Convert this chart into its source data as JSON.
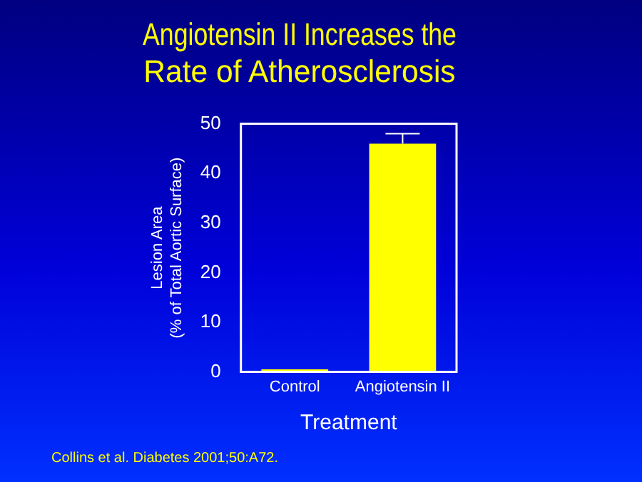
{
  "chart_data": {
    "type": "bar",
    "title": "Angiotensin II Increases the\nRate of Atherosclerosis",
    "xlabel": "Treatment",
    "ylabel": "Lesion Area\n(% of Total Aortic Surface)",
    "categories": [
      "Control",
      "Angiotensin II"
    ],
    "values": [
      0.5,
      46
    ],
    "errors": [
      null,
      [
        46,
        48
      ]
    ],
    "color": "#ffff00",
    "ylim": [
      0,
      50
    ],
    "yticks": [
      0,
      10,
      20,
      30,
      40,
      50
    ],
    "grid": false,
    "legend": false,
    "annotations": [
      "Collins et al. Diabetes 2001;50:A72."
    ]
  }
}
